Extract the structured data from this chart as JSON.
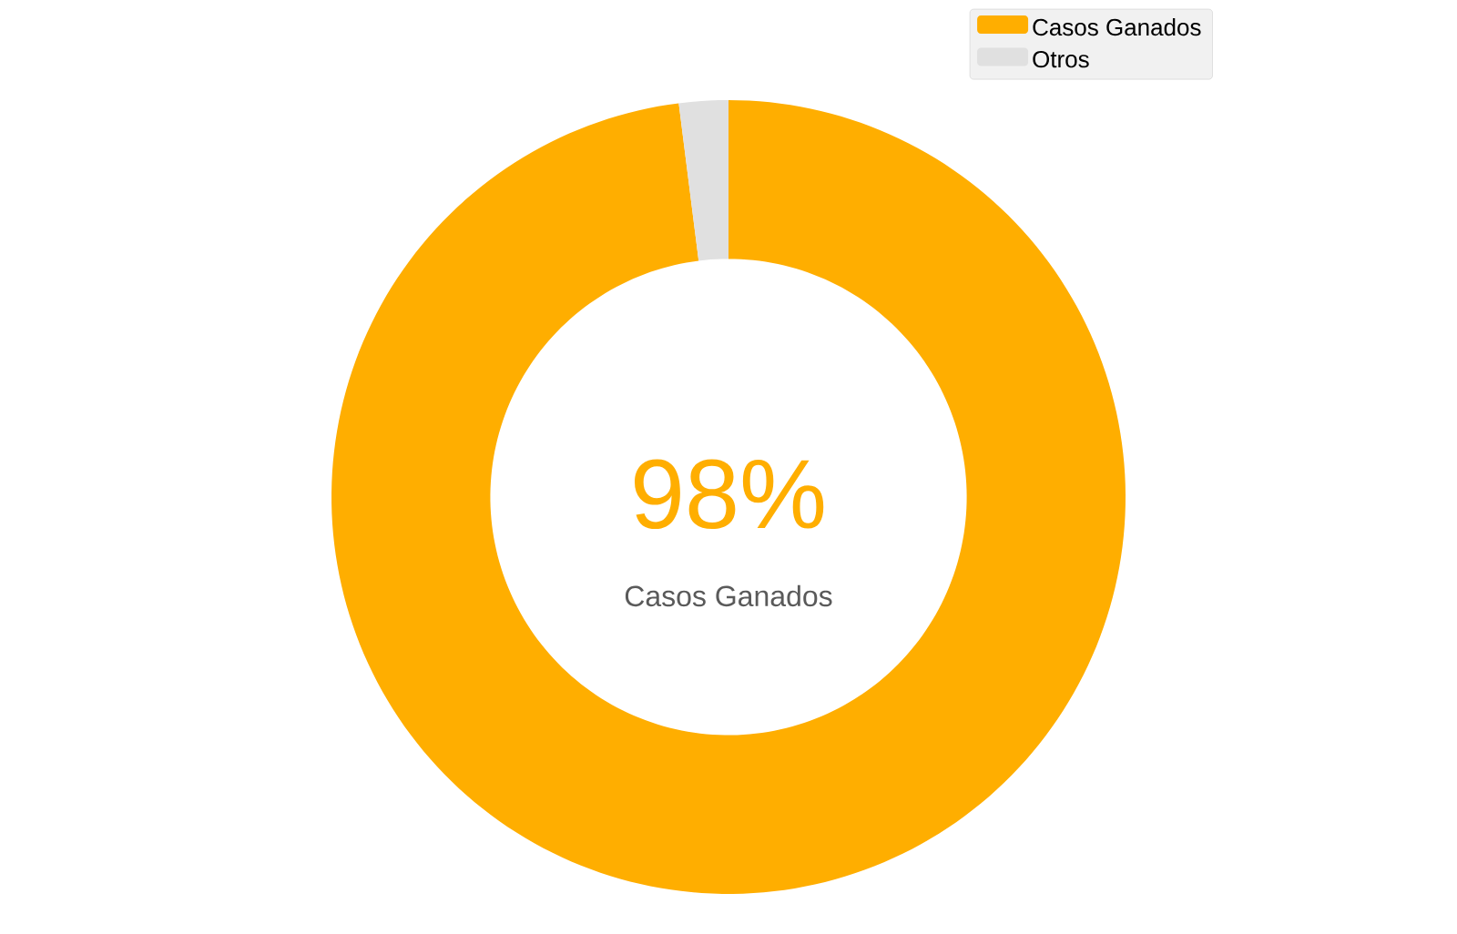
{
  "chart_data": {
    "type": "donut",
    "categories": [
      "Casos Ganados",
      "Otros"
    ],
    "values": [
      98,
      2
    ],
    "colors": [
      "#ffae00",
      "#e0e0e0"
    ],
    "legend": "top right",
    "annotations": [
      "98%",
      "Casos Ganados"
    ]
  }
}
